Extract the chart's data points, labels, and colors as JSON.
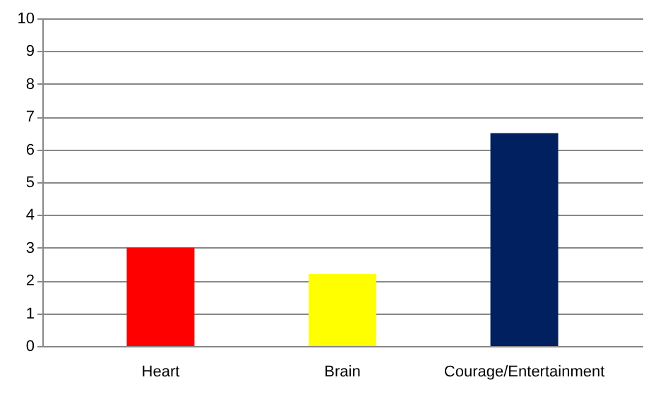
{
  "chart_data": {
    "type": "bar",
    "categories": [
      "Heart",
      "Brain",
      "Courage/Entertainment"
    ],
    "values": [
      3,
      2.2,
      6.5
    ],
    "colors": [
      "#ff0000",
      "#ffff00",
      "#002060"
    ],
    "ylim": [
      0,
      10
    ],
    "yticks": [
      0,
      1,
      2,
      3,
      4,
      5,
      6,
      7,
      8,
      9,
      10
    ],
    "grid": "y"
  }
}
